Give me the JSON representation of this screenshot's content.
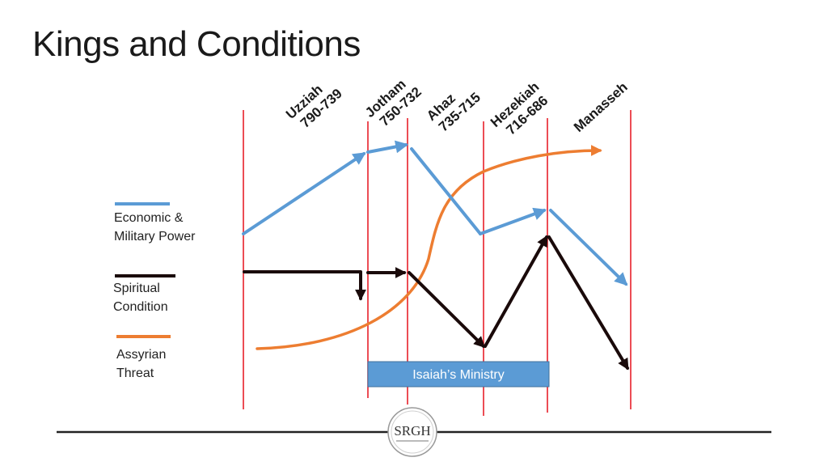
{
  "title": "Kings and Conditions",
  "kings": [
    {
      "name": "Uzziah",
      "years": "790-739"
    },
    {
      "name": "Jotham",
      "years": "750-732"
    },
    {
      "name": "Ahaz",
      "years": "735-715"
    },
    {
      "name": "Hezekiah",
      "years": "716-686"
    },
    {
      "name": "Manasseh",
      "years": ""
    }
  ],
  "legend": [
    {
      "line1": "Economic &",
      "line2": "Military Power",
      "color": "#5B9BD5"
    },
    {
      "line1": "Spiritual",
      "line2": "Condition",
      "color": "#1a0a0a"
    },
    {
      "line1": "Assyrian",
      "line2": "Threat",
      "color": "#ED7D31"
    }
  ],
  "ministry_label": "Isaiah’s Ministry",
  "ministry_color": "#5B9BD5",
  "divider_color": "#E8202A",
  "logo_text": "SRGH"
}
